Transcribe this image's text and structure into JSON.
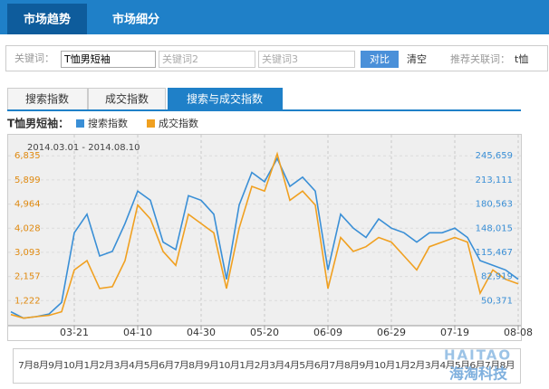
{
  "ui": {
    "tabs": [
      "市场趋势",
      "市场细分"
    ],
    "keyword_label": "关键词：",
    "keyword1": "T恤男短袖",
    "keyword2": "关键词2",
    "keyword3": "关键词3",
    "compare": "对比",
    "clear": "清空",
    "related_label": "推荐关联词：",
    "related": "t恤",
    "subtabs": [
      "搜索指数",
      "成交指数",
      "搜索与成交指数"
    ],
    "navigator": "7月8月9月10月1月2月3月4月5月6月7月8月9月10月1月2月3月4月5月6月7月8月9月10月1月2月3月4月5月6月7月8月",
    "watermark": "HAITAO",
    "watermark_cn": "海淘科技"
  },
  "chart_data": {
    "type": "line",
    "title": "T恤男短袖：",
    "subtitle": "2014.03.01 - 2014.08.10",
    "categories": [
      null,
      null,
      null,
      null,
      null,
      "03-21",
      null,
      null,
      null,
      null,
      "04-10",
      null,
      null,
      null,
      null,
      "04-30",
      null,
      null,
      null,
      null,
      "05-20",
      null,
      null,
      null,
      null,
      "06-09",
      null,
      null,
      null,
      null,
      "06-29",
      null,
      null,
      null,
      null,
      "07-19",
      null,
      null,
      null,
      null,
      "08-08"
    ],
    "series": [
      {
        "name": "搜索指数",
        "color": "#3a8fd6",
        "axis": "y2",
        "values": [
          35341,
          26643,
          28731,
          32210,
          47866,
          141805,
          166856,
          110490,
          116753,
          154330,
          198169,
          185644,
          129279,
          119189,
          191907,
          185644,
          166856,
          79179,
          179382,
          223220,
          210695,
          242008,
          204433,
          216958,
          198169,
          91704,
          166856,
          148068,
          135542,
          160593,
          148068,
          141805,
          129279,
          141805,
          141805,
          148068,
          135542,
          104230,
          97967,
          91704,
          79179
        ]
      },
      {
        "name": "成交指数",
        "color": "#f0a020",
        "values": [
          682,
          540,
          600,
          650,
          790,
          2410,
          2770,
          1690,
          1760,
          2770,
          4930,
          4390,
          3130,
          2590,
          4570,
          4210,
          3850,
          1690,
          4030,
          5650,
          5470,
          6910,
          5110,
          5470,
          4930,
          1690,
          3670,
          3130,
          3310,
          3670,
          3490,
          2950,
          2410,
          3310,
          3490,
          3670,
          3490,
          1510,
          2410,
          2050,
          1870
        ]
      }
    ],
    "ylim": [
      250,
      7650
    ],
    "yticks": [
      {
        "value": 1222,
        "label": "1,222"
      },
      {
        "value": 2157,
        "label": "2,157"
      },
      {
        "value": 3093,
        "label": "3,093"
      },
      {
        "value": 4028,
        "label": "4,028"
      },
      {
        "value": 4964,
        "label": "4,964"
      },
      {
        "value": 5899,
        "label": "5,899"
      },
      {
        "value": 6835,
        "label": "6,835"
      }
    ],
    "y2lim": [
      16553,
      274011
    ],
    "y2ticks": [
      {
        "value": 50371,
        "label": "50,371"
      },
      {
        "value": 82919,
        "label": "82,919"
      },
      {
        "value": 115467,
        "label": "115,467"
      },
      {
        "value": 148015,
        "label": "148,015"
      },
      {
        "value": 180563,
        "label": "180,563"
      },
      {
        "value": 213111,
        "label": "213,111"
      },
      {
        "value": 245659,
        "label": "245,659"
      }
    ],
    "grid": true
  }
}
